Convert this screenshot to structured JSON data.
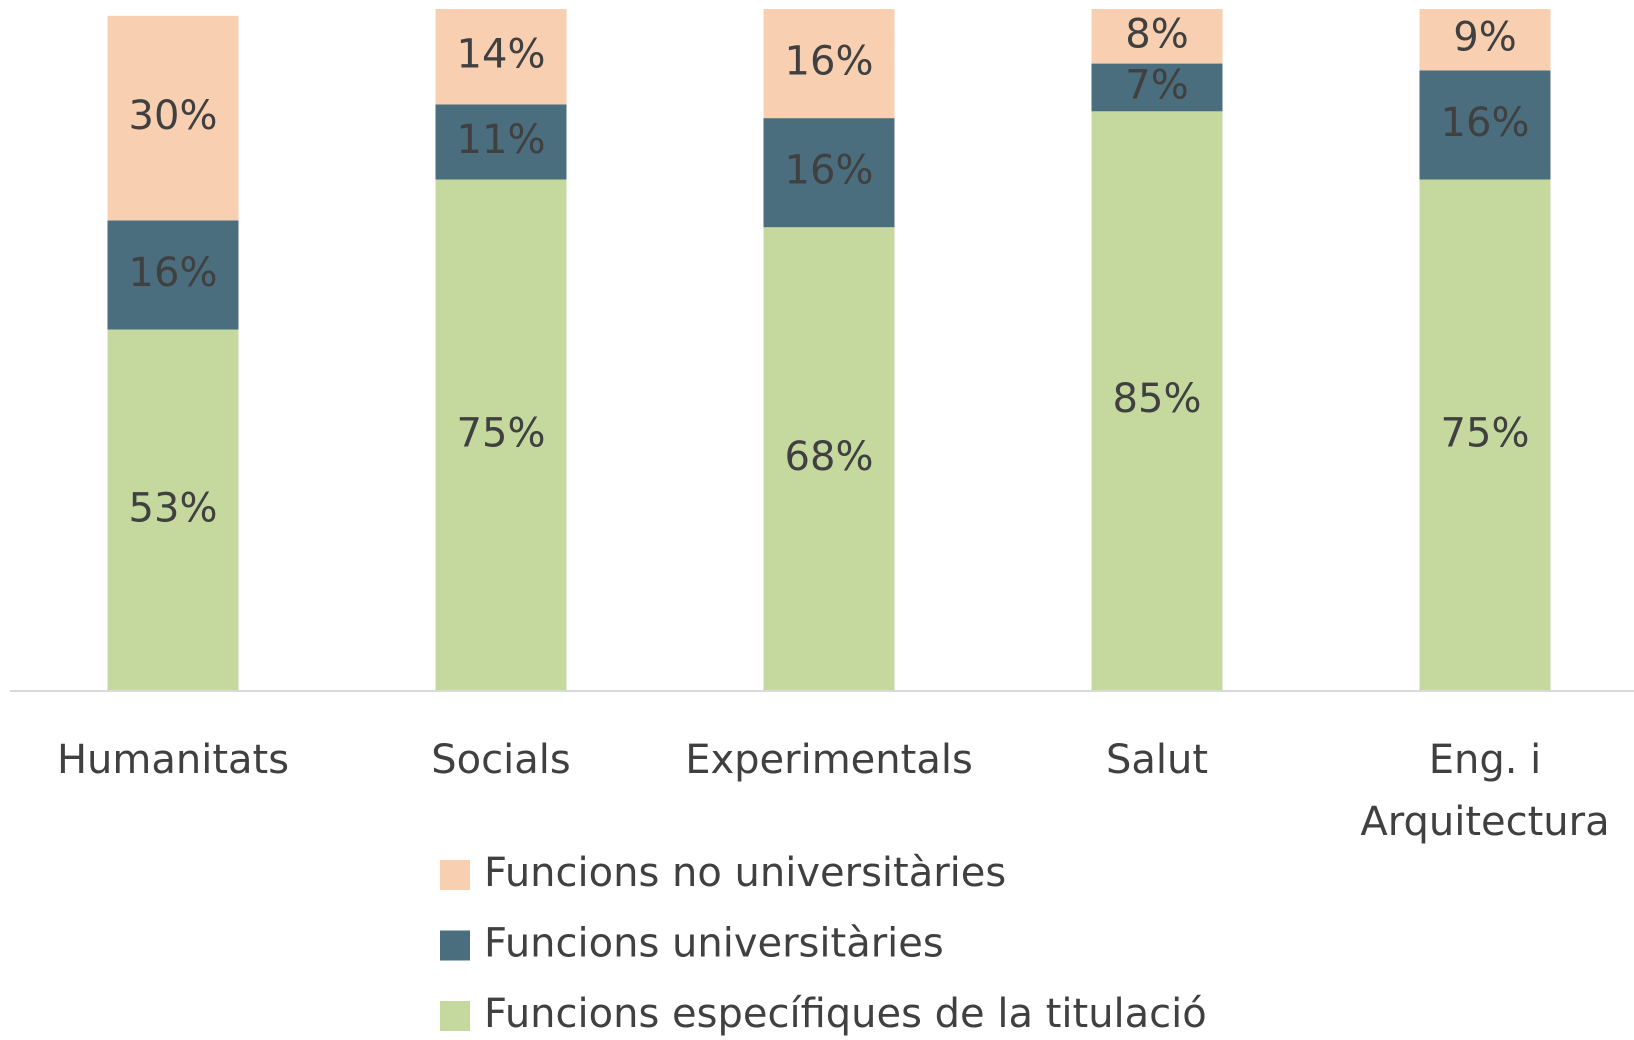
{
  "chart_data": {
    "type": "stacked_bar",
    "categories": [
      "Humanitats",
      "Socials",
      "Experimentals",
      "Salut",
      "Eng. i Arquitectura"
    ],
    "series": [
      {
        "name": "Funcions específiques de la titulació",
        "color": "#c5d89e",
        "values": [
          53,
          75,
          68,
          85,
          75
        ],
        "value_labels": [
          "53%",
          "75%",
          "68%",
          "85%",
          "75%"
        ]
      },
      {
        "name": "Funcions universitàries",
        "color": "#4a6e7e",
        "values": [
          16,
          11,
          16,
          7,
          16
        ],
        "value_labels": [
          "16%",
          "11%",
          "16%",
          "7%",
          "16%"
        ]
      },
      {
        "name": "Funcions no universitàries",
        "color": "#f8cfb0",
        "values": [
          30,
          14,
          16,
          8,
          9
        ],
        "value_labels": [
          "30%",
          "14%",
          "16%",
          "8%",
          "9%"
        ]
      }
    ],
    "ylim": [
      0,
      100
    ],
    "legend": "bottom"
  }
}
